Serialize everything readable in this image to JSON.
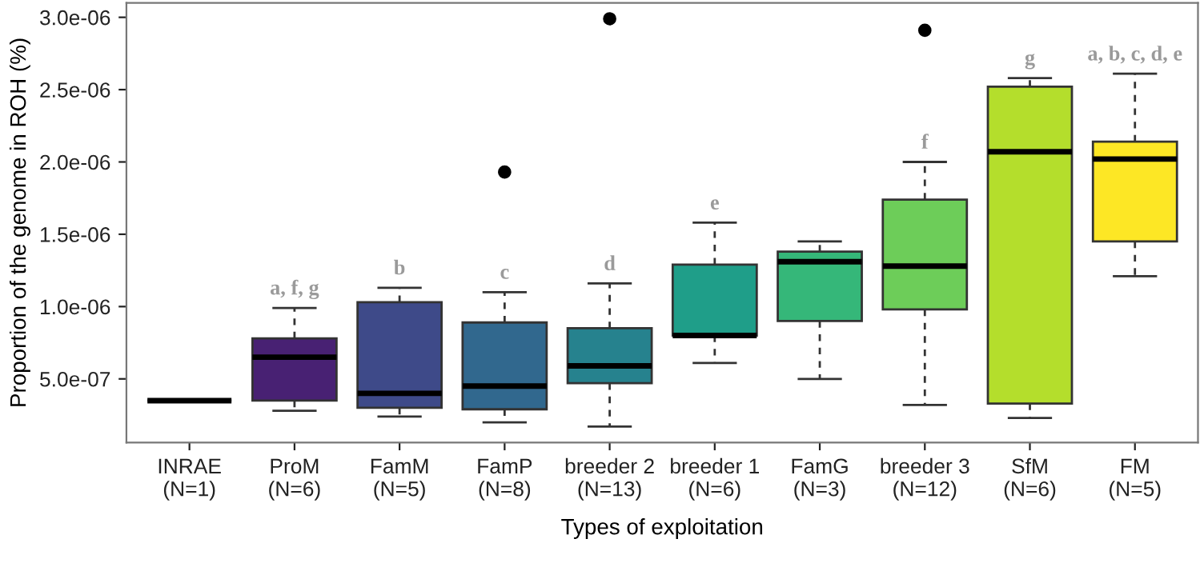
{
  "chart_data": {
    "type": "box",
    "xlabel": "Types of exploitation",
    "ylabel": "Proportion of the genome in ROH (%)",
    "categories": [
      "INRAE\n(N=1)",
      "ProM\n(N=6)",
      "FamM\n(N=5)",
      "FamP\n(N=8)",
      "breeder 2\n(N=13)",
      "breeder 1\n(N=6)",
      "FamG\n(N=3)",
      "breeder 3\n(N=12)",
      "SfM\n(N=6)",
      "FM\n(N=5)"
    ],
    "colors": [
      "#333333",
      "#482173",
      "#3e4a89",
      "#31688e",
      "#26828e",
      "#1f9e89",
      "#35b779",
      "#6dcd59",
      "#b4de2c",
      "#fde725"
    ],
    "boxes": [
      {
        "low": 3.5e-07,
        "q1": 3.5e-07,
        "median": 3.5e-07,
        "q3": 3.5e-07,
        "high": 3.5e-07
      },
      {
        "low": 2.8e-07,
        "q1": 3.5e-07,
        "median": 6.5e-07,
        "q3": 7.8e-07,
        "high": 9.9e-07
      },
      {
        "low": 2.4e-07,
        "q1": 3e-07,
        "median": 4e-07,
        "q3": 1.03e-06,
        "high": 1.13e-06
      },
      {
        "low": 2e-07,
        "q1": 2.9e-07,
        "median": 4.5e-07,
        "q3": 8.9e-07,
        "high": 1.1e-06,
        "outliers": [
          1.93e-06
        ]
      },
      {
        "low": 1.7e-07,
        "q1": 4.7e-07,
        "median": 5.9e-07,
        "q3": 8.5e-07,
        "high": 1.16e-06,
        "outliers": [
          2.99e-06
        ]
      },
      {
        "low": 6.1e-07,
        "q1": 8e-07,
        "median": 8e-07,
        "q3": 1.29e-06,
        "high": 1.58e-06
      },
      {
        "low": 5e-07,
        "q1": 9e-07,
        "median": 1.31e-06,
        "q3": 1.38e-06,
        "high": 1.45e-06
      },
      {
        "low": 3.2e-07,
        "q1": 9.8e-07,
        "median": 1.28e-06,
        "q3": 1.74e-06,
        "high": 2e-06,
        "outliers": [
          2.91e-06
        ]
      },
      {
        "low": 2.3e-07,
        "q1": 3.3e-07,
        "median": 2.07e-06,
        "q3": 2.52e-06,
        "high": 2.58e-06
      },
      {
        "low": 1.21e-06,
        "q1": 1.45e-06,
        "median": 2.02e-06,
        "q3": 2.14e-06,
        "high": 2.61e-06
      }
    ],
    "ylim": [
      6e-08,
      3.1e-06
    ],
    "yticks": [
      {
        "value": 5e-07,
        "label": "5.0e-07"
      },
      {
        "value": 1e-06,
        "label": "1.0e-06"
      },
      {
        "value": 1.5e-06,
        "label": "1.5e-06"
      },
      {
        "value": 2e-06,
        "label": "2.0e-06"
      },
      {
        "value": 2.5e-06,
        "label": "2.5e-06"
      },
      {
        "value": 3e-06,
        "label": "3.0e-06"
      }
    ],
    "annotations": [
      {
        "text": "a, f, g",
        "x": "ProM\n(N=6)",
        "y": 9.9e-07
      },
      {
        "text": "b",
        "x": "FamM\n(N=5)",
        "y": 1.13e-06
      },
      {
        "text": "c",
        "x": "FamP\n(N=8)",
        "y": 1.1e-06
      },
      {
        "text": "d",
        "x": "breeder 2\n(N=13)",
        "y": 1.16e-06
      },
      {
        "text": "e",
        "x": "breeder 1\n(N=6)",
        "y": 1.58e-06
      },
      {
        "text": "f",
        "x": "breeder 3\n(N=12)",
        "y": 2e-06
      },
      {
        "text": "g",
        "x": "SfM\n(N=6)",
        "y": 2.58e-06
      },
      {
        "text": "a, b, c, d, e",
        "x": "FM\n(N=5)",
        "y": 2.61e-06
      }
    ],
    "grid": false,
    "legend": false
  }
}
